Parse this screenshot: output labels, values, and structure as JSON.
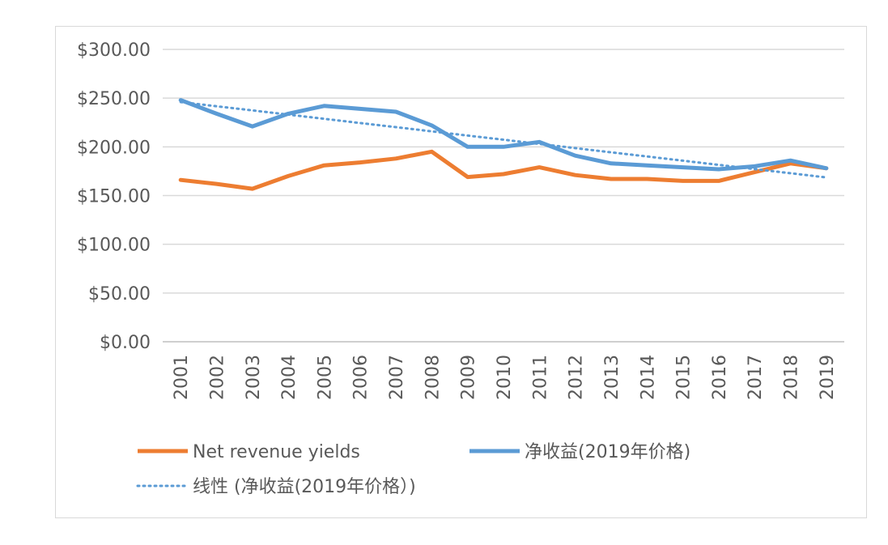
{
  "chart_data": {
    "type": "line",
    "title": "",
    "xlabel": "",
    "ylabel": "",
    "x": [
      "2001",
      "2002",
      "2003",
      "2004",
      "2005",
      "2006",
      "2007",
      "2008",
      "2009",
      "2010",
      "2011",
      "2012",
      "2013",
      "2014",
      "2015",
      "2016",
      "2017",
      "2018",
      "2019"
    ],
    "ylim": [
      0,
      300
    ],
    "y_ticks": [
      "$0.00",
      "$50.00",
      "$100.00",
      "$150.00",
      "$200.00",
      "$250.00",
      "$300.00"
    ],
    "grid": true,
    "legend_position": "bottom",
    "series": [
      {
        "name": "Net revenue yields",
        "color": "#ED7D31",
        "style": "solid",
        "values": [
          166,
          162,
          157,
          170,
          181,
          184,
          188,
          195,
          169,
          172,
          179,
          171,
          167,
          167,
          165,
          165,
          174,
          183,
          178
        ]
      },
      {
        "name": "净收益(2019年价格)",
        "color": "#5B9BD5",
        "style": "solid",
        "values": [
          248,
          234,
          221,
          234,
          242,
          239,
          236,
          222,
          200,
          200,
          205,
          191,
          183,
          181,
          179,
          177,
          180,
          186,
          178
        ]
      },
      {
        "name": "线性 (净收益(2019年价格）)",
        "color": "#5B9BD5",
        "style": "dotted",
        "values": [
          246,
          241.7,
          237.4,
          233.1,
          228.8,
          224.5,
          220.2,
          215.9,
          211.6,
          207.3,
          203,
          198.7,
          194.4,
          190.1,
          185.8,
          181.5,
          177.2,
          172.9,
          168.6
        ]
      }
    ]
  }
}
